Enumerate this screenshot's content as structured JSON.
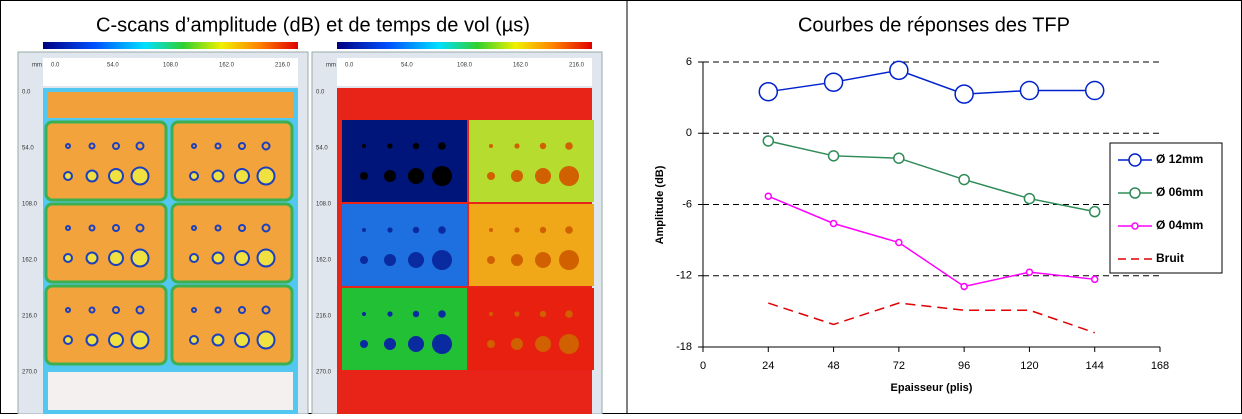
{
  "left_panel": {
    "title": "C-scans d’amplitude (dB) et de temps de vol (µs)",
    "scan_unit": "mm",
    "scan_x_labels": [
      "0.0",
      "54.0",
      "108.0",
      "162.0",
      "216.0"
    ],
    "scan_y_labels": [
      "0.0",
      "54.0",
      "108.0",
      "162.0",
      "216.0",
      "270.0"
    ]
  },
  "chart_data": {
    "type": "line",
    "title": "Courbes de réponses des TFP",
    "x_label": "Epaisseur (plis)",
    "y_label": "Amplitude (dB)",
    "x": [
      24,
      48,
      72,
      96,
      120,
      144
    ],
    "xlim": [
      0,
      168
    ],
    "xticks": [
      0,
      24,
      48,
      72,
      96,
      120,
      144,
      168
    ],
    "ylim": [
      -18,
      6
    ],
    "yticks": [
      -18,
      -12,
      -6,
      0,
      6
    ],
    "grid": "horizontal-dashed",
    "legend": "right",
    "series": [
      {
        "name": "Ø 12mm",
        "color": "#0022cc",
        "marker": "circle-large",
        "values": [
          3.5,
          4.3,
          5.3,
          3.3,
          3.6,
          3.6
        ]
      },
      {
        "name": "Ø 06mm",
        "color": "#2e8b57",
        "marker": "circle",
        "values": [
          -0.65,
          -1.9,
          -2.1,
          -3.9,
          -5.5,
          -6.6
        ]
      },
      {
        "name": "Ø 04mm",
        "color": "#ff00ff",
        "marker": "circle-small",
        "values": [
          -5.3,
          -7.6,
          -9.2,
          -12.9,
          -11.7,
          -12.3
        ]
      },
      {
        "name": "Bruit",
        "color": "#e00000",
        "marker": "none",
        "dash": true,
        "values": [
          -14.3,
          -16.1,
          -14.3,
          -14.9,
          -14.9,
          -16.8
        ]
      }
    ]
  }
}
